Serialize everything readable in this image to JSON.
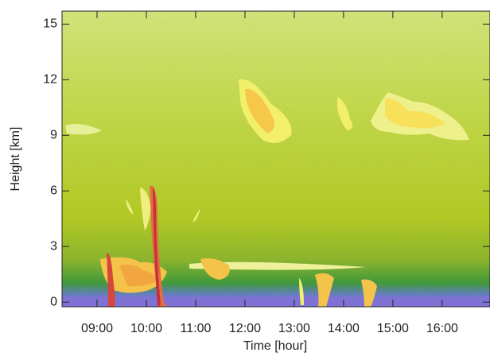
{
  "chart_data": {
    "type": "time-height",
    "x_label": "Time [hour]",
    "y_label": "Height [km]",
    "xlim": [
      8.29,
      16.97
    ],
    "xticks": [
      {
        "value": 9,
        "label": "09:00"
      },
      {
        "value": 10,
        "label": "10:00"
      },
      {
        "value": 11,
        "label": "11:00"
      },
      {
        "value": 12,
        "label": "12:00"
      },
      {
        "value": 13,
        "label": "13:00"
      },
      {
        "value": 14,
        "label": "14:00"
      },
      {
        "value": 15,
        "label": "15:00"
      },
      {
        "value": 16,
        "label": "16:00"
      }
    ],
    "ylim": [
      -0.25,
      15.7
    ],
    "yticks": [
      0,
      3,
      6,
      9,
      12,
      15
    ]
  }
}
